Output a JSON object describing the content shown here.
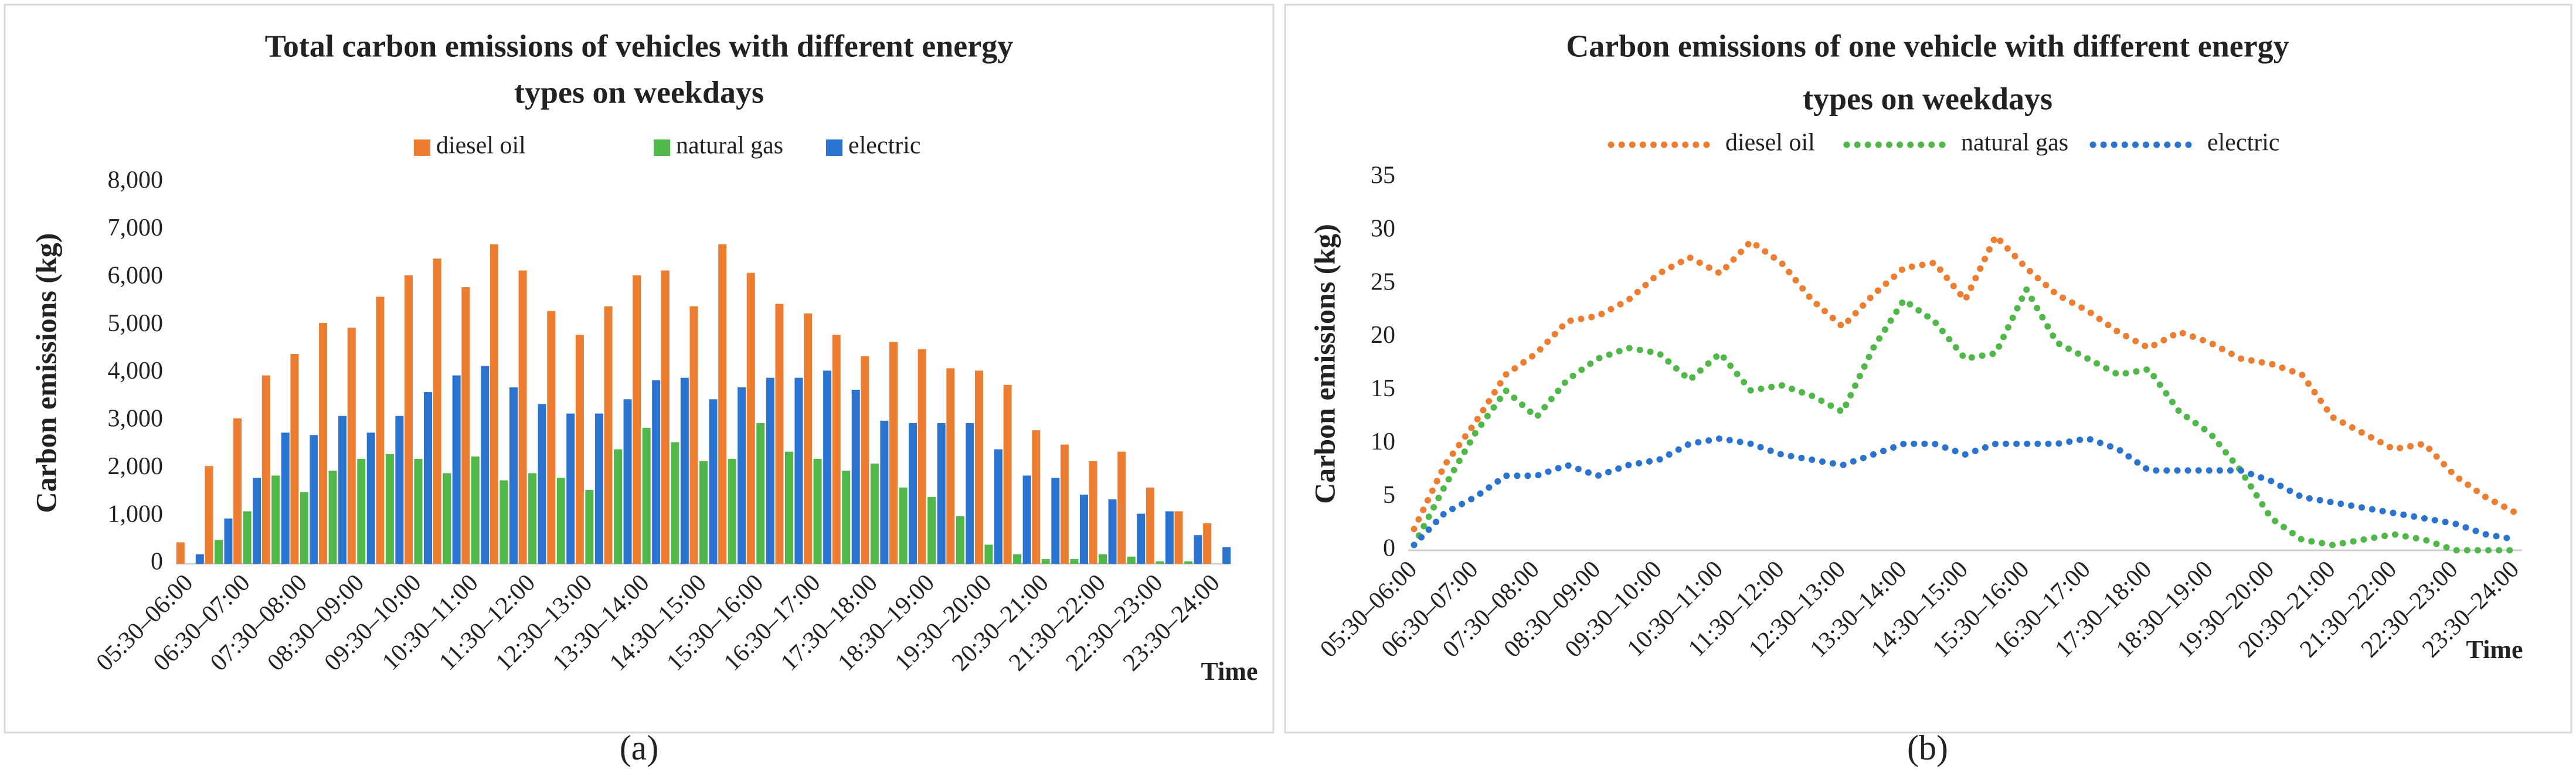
{
  "chart_data": [
    {
      "type": "bar",
      "title": [
        "Total carbon emissions of vehicles with different energy",
        "types on weekdays"
      ],
      "y_label": "Carbon emissions (kg)",
      "x_label": "Time",
      "panel_label": "(a)",
      "categories": [
        "05:30–06:00",
        null,
        "06:30–07:00",
        null,
        "07:30–08:00",
        null,
        "08:30–09:00",
        null,
        "09:30–10:00",
        null,
        "10:30–11:00",
        null,
        "11:30–12:00",
        null,
        "12:30–13:00",
        null,
        "13:30–14:00",
        null,
        "14:30–15:00",
        null,
        "15:30–16:00",
        null,
        "16:30–17:00",
        null,
        "17:30–18:00",
        null,
        "18:30–19:00",
        null,
        "19:30–20:00",
        null,
        "20:30–21:00",
        null,
        "21:30–22:00",
        null,
        "22:30–23:00",
        null,
        "23:30–24:00"
      ],
      "series": [
        {
          "name": "diesel oil",
          "color": "#ed7d31",
          "values": [
            450,
            2050,
            3050,
            3950,
            4400,
            5050,
            4950,
            5600,
            6050,
            6400,
            5800,
            6700,
            6150,
            5300,
            4800,
            5400,
            6050,
            6150,
            5400,
            6700,
            6100,
            5450,
            5250,
            4800,
            4350,
            4650,
            4500,
            4100,
            4050,
            3750,
            2800,
            2500,
            2150,
            2350,
            1600,
            1100,
            850
          ]
        },
        {
          "name": "natural gas",
          "color": "#4fb848",
          "values": [
            0,
            500,
            1100,
            1850,
            1500,
            1950,
            2200,
            2300,
            2200,
            1900,
            2250,
            1750,
            1900,
            1800,
            1550,
            2400,
            2850,
            2550,
            2150,
            2200,
            2950,
            2350,
            2200,
            1950,
            2100,
            1600,
            1400,
            1000,
            400,
            200,
            100,
            100,
            200,
            150,
            50,
            50,
            0
          ]
        },
        {
          "name": "electric",
          "color": "#2a73cf",
          "values": [
            200,
            950,
            1800,
            2750,
            2700,
            3100,
            2750,
            3100,
            3600,
            3950,
            4150,
            3700,
            3350,
            3150,
            3150,
            3450,
            3850,
            3900,
            3450,
            3700,
            3900,
            3900,
            4050,
            3650,
            3000,
            2950,
            2950,
            2950,
            2400,
            1850,
            1800,
            1450,
            1350,
            1050,
            1100,
            600,
            350
          ]
        }
      ],
      "ylim": [
        0,
        8000
      ],
      "yticks": [
        0,
        {
          "value": 1000,
          "label": "1,000"
        },
        {
          "value": 2000,
          "label": "2,000"
        },
        {
          "value": 3000,
          "label": "3,000"
        },
        {
          "value": 4000,
          "label": "4,000"
        },
        {
          "value": 5000,
          "label": "5,000"
        },
        {
          "value": 6000,
          "label": "6,000"
        },
        {
          "value": 7000,
          "label": "7,000"
        },
        {
          "value": 8000,
          "label": "8,000"
        }
      ],
      "grid": false
    },
    {
      "type": "line",
      "title": [
        "Carbon emissions of  one vehicle with different energy",
        "types on weekdays"
      ],
      "y_label": "Carbon emissions (kg)",
      "x_label": "Time",
      "panel_label": "(b)",
      "categories": [
        "05:30–06:00",
        null,
        "06:30–07:00",
        null,
        "07:30–08:00",
        null,
        "08:30–09:00",
        null,
        "09:30–10:00",
        null,
        "10:30–11:00",
        null,
        "11:30–12:00",
        null,
        "12:30–13:00",
        null,
        "13:30–14:00",
        null,
        "14:30–15:00",
        null,
        "15:30–16:00",
        null,
        "16:30–17:00",
        null,
        "17:30–18:00",
        null,
        "18:30–19:00",
        null,
        "19:30–20:00",
        null,
        "20:30–21:00",
        null,
        "21:30–22:00",
        null,
        "22:30–23:00",
        null,
        "23:30–24:00"
      ],
      "series": [
        {
          "name": "diesel oil",
          "color": "#ed7d31",
          "values": [
            2,
            8,
            12,
            16.5,
            18.5,
            21.5,
            22,
            23.5,
            26,
            27.5,
            26,
            29,
            27,
            23.5,
            21,
            24,
            26.5,
            27,
            23.5,
            29.5,
            26.5,
            24,
            22.5,
            20.5,
            19,
            20.5,
            19.5,
            18,
            17.5,
            16.5,
            12.5,
            11,
            9.5,
            10,
            7,
            5,
            3.5
          ]
        },
        {
          "name": "natural gas",
          "color": "#4fb848",
          "values": [
            0.5,
            6,
            11,
            15,
            12.5,
            16,
            18,
            19,
            18.5,
            16,
            18.5,
            15,
            15.5,
            14.5,
            13,
            19,
            23.5,
            21.5,
            18,
            18.5,
            24.5,
            19.5,
            18,
            16.5,
            17,
            13,
            11,
            7.5,
            3,
            1,
            0.5,
            1,
            1.5,
            1,
            0,
            0,
            0
          ]
        },
        {
          "name": "electric",
          "color": "#2a73cf",
          "values": [
            0.5,
            3.5,
            5,
            7,
            7,
            8,
            7,
            8,
            8.5,
            10,
            10.5,
            10,
            9,
            8.5,
            8,
            9,
            10,
            10,
            9,
            10,
            10,
            10,
            10.5,
            9.5,
            7.5,
            7.5,
            7.5,
            7.5,
            6.5,
            5,
            4.5,
            4,
            3.5,
            3,
            2.5,
            1.5,
            1
          ]
        }
      ],
      "ylim": [
        0,
        35
      ],
      "yticks": [
        0,
        5,
        10,
        15,
        20,
        25,
        30,
        35
      ],
      "grid": false
    }
  ]
}
